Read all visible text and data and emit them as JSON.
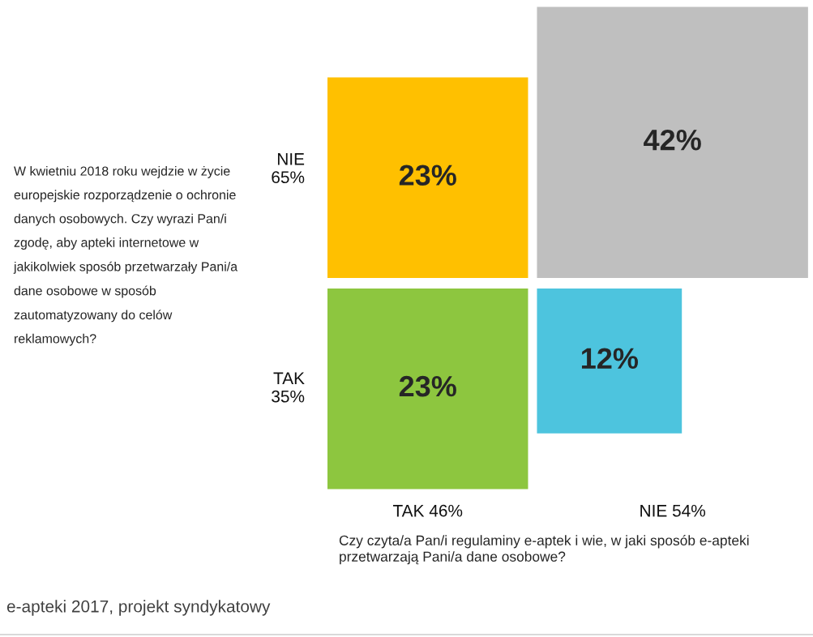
{
  "chart_data": {
    "type": "other",
    "categories": [
      "TAK 46%",
      "NIE 54%"
    ],
    "series": [
      {
        "name": "NIE\n65%",
        "values": [
          23,
          42
        ],
        "colors": [
          "#ffc000",
          "#bfbfbf"
        ],
        "value_labels": [
          "23%",
          "42%"
        ]
      },
      {
        "name": "TAK\n35%",
        "values": [
          23,
          12
        ],
        "colors": [
          "#8dc63f",
          "#4dc4de"
        ],
        "value_labels": [
          "23%",
          "12%"
        ]
      }
    ],
    "xlabel": "Czy czyta/a Pan/i regulaminy e-aptek i wie, w jaki sposób e-apteki przetwarzają Pani/a dane osobowe?",
    "annotations": [
      "W kwietniu 2018 roku wejdzie w życie europejskie rozporządzenie o ochronie danych osobowych. Czy wyrazi Pan/i zgodę, aby apteki internetowe w jakikolwiek sposób przetwarzały Pani/a dane osobowe w sposób zautomatyzowany do celów reklamowych?",
      "e-apteki 2017, projekt syndykatowy"
    ]
  }
}
